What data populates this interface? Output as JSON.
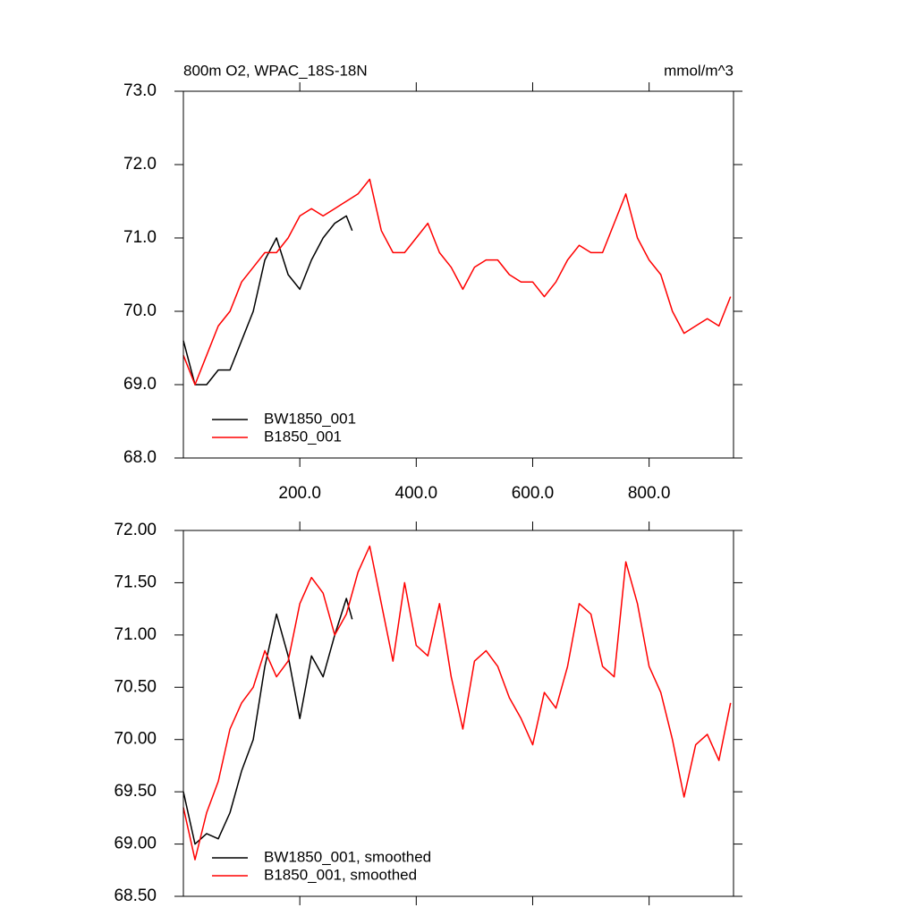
{
  "chart_data": [
    {
      "type": "line",
      "title": "800m O2, WPAC_18S-18N",
      "units": "mmol/m^3",
      "xlim": [
        0,
        945
      ],
      "xticks": [
        {
          "value": 200,
          "label": "200.0"
        },
        {
          "value": 400,
          "label": "400.0"
        },
        {
          "value": 600,
          "label": "600.0"
        },
        {
          "value": 800,
          "label": "800.0"
        }
      ],
      "ylim": [
        68,
        73
      ],
      "yticks": [
        {
          "value": 68,
          "label": "68.0"
        },
        {
          "value": 69,
          "label": "69.0"
        },
        {
          "value": 70,
          "label": "70.0"
        },
        {
          "value": 71,
          "label": "71.0"
        },
        {
          "value": 72,
          "label": "72.0"
        },
        {
          "value": 73,
          "label": "73.0"
        }
      ],
      "series": [
        {
          "name": "BW1850_001",
          "color": "#000000",
          "x": [
            0,
            20,
            40,
            60,
            80,
            100,
            120,
            140,
            160,
            180,
            200,
            220,
            240,
            260,
            280,
            290
          ],
          "values": [
            69.6,
            69.0,
            69.0,
            69.2,
            69.2,
            69.6,
            70.0,
            70.7,
            71.0,
            70.5,
            70.3,
            70.7,
            71.0,
            71.2,
            71.3,
            71.1
          ]
        },
        {
          "name": "B1850_001",
          "color": "#ff0000",
          "x": [
            0,
            20,
            40,
            60,
            80,
            100,
            120,
            140,
            160,
            180,
            200,
            220,
            240,
            260,
            280,
            300,
            320,
            340,
            360,
            380,
            400,
            420,
            440,
            460,
            480,
            500,
            520,
            540,
            560,
            580,
            600,
            620,
            640,
            660,
            680,
            700,
            720,
            740,
            760,
            780,
            800,
            820,
            840,
            860,
            880,
            900,
            920,
            940
          ],
          "values": [
            69.4,
            69.0,
            69.4,
            69.8,
            70.0,
            70.4,
            70.6,
            70.8,
            70.8,
            71.0,
            71.3,
            71.4,
            71.3,
            71.4,
            71.5,
            71.6,
            71.8,
            71.1,
            70.8,
            70.8,
            71.0,
            71.2,
            70.8,
            70.6,
            70.3,
            70.6,
            70.7,
            70.7,
            70.5,
            70.4,
            70.4,
            70.2,
            70.4,
            70.7,
            70.9,
            70.8,
            70.8,
            71.2,
            71.6,
            71.0,
            70.7,
            70.5,
            70.0,
            69.7,
            69.8,
            69.9,
            69.8,
            70.2
          ]
        }
      ]
    },
    {
      "type": "line",
      "xlim": [
        0,
        945
      ],
      "ylim": [
        68.5,
        72
      ],
      "yticks": [
        {
          "value": 68.5,
          "label": "68.50"
        },
        {
          "value": 69,
          "label": "69.00"
        },
        {
          "value": 69.5,
          "label": "69.50"
        },
        {
          "value": 70,
          "label": "70.00"
        },
        {
          "value": 70.5,
          "label": "70.50"
        },
        {
          "value": 71,
          "label": "71.00"
        },
        {
          "value": 71.5,
          "label": "71.50"
        },
        {
          "value": 72,
          "label": "72.00"
        }
      ],
      "series": [
        {
          "name": "BW1850_001, smoothed",
          "color": "#000000",
          "x": [
            0,
            20,
            40,
            60,
            80,
            100,
            120,
            140,
            160,
            180,
            200,
            220,
            240,
            260,
            280,
            290
          ],
          "values": [
            69.5,
            69.0,
            69.1,
            69.05,
            69.3,
            69.7,
            70.0,
            70.7,
            71.2,
            70.8,
            70.2,
            70.8,
            70.6,
            71.0,
            71.35,
            71.15
          ]
        },
        {
          "name": "B1850_001, smoothed",
          "color": "#ff0000",
          "x": [
            0,
            20,
            40,
            60,
            80,
            100,
            120,
            140,
            160,
            180,
            200,
            220,
            240,
            260,
            280,
            300,
            320,
            340,
            360,
            380,
            400,
            420,
            440,
            460,
            480,
            500,
            520,
            540,
            560,
            580,
            600,
            620,
            640,
            660,
            680,
            700,
            720,
            740,
            760,
            780,
            800,
            820,
            840,
            860,
            880,
            900,
            920,
            940
          ],
          "values": [
            69.35,
            68.85,
            69.3,
            69.6,
            70.1,
            70.35,
            70.5,
            70.85,
            70.6,
            70.75,
            71.3,
            71.55,
            71.4,
            71.0,
            71.2,
            71.6,
            71.85,
            71.3,
            70.75,
            71.5,
            70.9,
            70.8,
            71.3,
            70.6,
            70.1,
            70.75,
            70.85,
            70.7,
            70.4,
            70.2,
            69.95,
            70.45,
            70.3,
            70.7,
            71.3,
            71.2,
            70.7,
            70.6,
            71.7,
            71.3,
            70.7,
            70.45,
            70.0,
            69.45,
            69.95,
            70.05,
            69.8,
            70.35
          ]
        }
      ]
    }
  ]
}
